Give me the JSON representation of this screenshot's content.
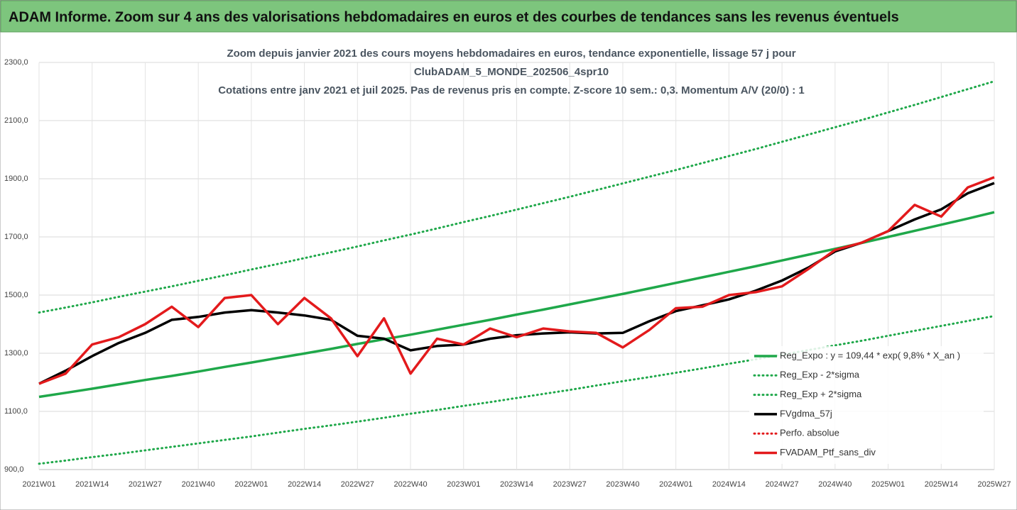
{
  "banner": "ADAM Informe. Zoom sur 4 ans des valorisations hebdomadaires en euros et des courbes de tendances sans les revenus éventuels",
  "chart_data": {
    "type": "line",
    "title": [
      "Zoom depuis janvier 2021 des cours moyens hebdomadaires  en euros, tendance exponentielle, lissage 57 j pour",
      "ClubADAM_5_MONDE_202506_4spr10",
      "Cotations entre janv 2021 et juil 2025. Pas de revenus pris en compte. Z-score 10 sem.: 0,3. Momentum A/V (20/0) : 1"
    ],
    "categories": [
      "2021W01",
      null,
      "2021W14",
      null,
      "2021W27",
      null,
      "2021W40",
      null,
      "2022W01",
      null,
      "2022W14",
      null,
      "2022W27",
      null,
      "2022W40",
      null,
      "2023W01",
      null,
      "2023W14",
      null,
      "2023W27",
      null,
      "2023W40",
      null,
      "2024W01",
      null,
      "2024W14",
      null,
      "2024W27",
      null,
      "2024W40",
      null,
      "2025W01",
      null,
      "2025W14",
      null,
      "2025W27"
    ],
    "ylim": [
      900,
      2300
    ],
    "yticks": [
      {
        "value": 900,
        "label": "900,0"
      },
      {
        "value": 1100,
        "label": "1100,0"
      },
      {
        "value": 1300,
        "label": "1300,0"
      },
      {
        "value": 1500,
        "label": "1500,0"
      },
      {
        "value": 1700,
        "label": "1700,0"
      },
      {
        "value": 1900,
        "label": "1900,0"
      },
      {
        "value": 2100,
        "label": "2100,0"
      },
      {
        "value": 2300,
        "label": "2300,0"
      }
    ],
    "grid": true,
    "series": [
      {
        "name": "Reg_Expo : y = 109,44 * exp( 9,8% *  X_an )",
        "color": "#1fa84a",
        "style": "solid",
        "values": [
          1150,
          1164,
          1178,
          1193,
          1208,
          1222,
          1237,
          1253,
          1268,
          1284,
          1299,
          1315,
          1332,
          1348,
          1364,
          1381,
          1398,
          1415,
          1433,
          1450,
          1468,
          1486,
          1504,
          1523,
          1542,
          1561,
          1580,
          1599,
          1619,
          1639,
          1659,
          1679,
          1700,
          1721,
          1742,
          1763,
          1785
        ]
      },
      {
        "name": "Reg_Exp - 2*sigma",
        "color": "#1fa84a",
        "style": "dotted",
        "values": [
          920,
          931,
          943,
          954,
          966,
          978,
          990,
          1002,
          1014,
          1027,
          1040,
          1052,
          1065,
          1078,
          1092,
          1105,
          1119,
          1132,
          1146,
          1160,
          1174,
          1189,
          1204,
          1218,
          1233,
          1248,
          1264,
          1279,
          1295,
          1311,
          1327,
          1343,
          1360,
          1377,
          1394,
          1411,
          1428
        ]
      },
      {
        "name": "Reg_Exp + 2*sigma",
        "color": "#1fa84a",
        "style": "dotted",
        "values": [
          1440,
          1457,
          1475,
          1494,
          1512,
          1530,
          1549,
          1568,
          1588,
          1607,
          1627,
          1647,
          1667,
          1688,
          1708,
          1729,
          1751,
          1772,
          1794,
          1816,
          1838,
          1861,
          1884,
          1907,
          1930,
          1954,
          1978,
          2002,
          2027,
          2052,
          2077,
          2102,
          2128,
          2154,
          2181,
          2208,
          2235
        ]
      },
      {
        "name": "FVgdma_57j",
        "color": "#000000",
        "style": "solid",
        "values": [
          1195,
          1240,
          1290,
          1335,
          1370,
          1415,
          1425,
          1440,
          1448,
          1440,
          1430,
          1415,
          1360,
          1350,
          1310,
          1325,
          1330,
          1350,
          1362,
          1368,
          1372,
          1368,
          1370,
          1410,
          1445,
          1465,
          1485,
          1515,
          1550,
          1595,
          1650,
          1680,
          1720,
          1760,
          1795,
          1850,
          1885
        ]
      },
      {
        "name": "Perfo. absolue",
        "color": "#e31a1c",
        "style": "dotted",
        "values": [
          null,
          null,
          null,
          null,
          null,
          null,
          null,
          null,
          null,
          null,
          null,
          null,
          null,
          null,
          null,
          null,
          null,
          null,
          null,
          null,
          null,
          null,
          null,
          null,
          null,
          null,
          null,
          null,
          null,
          null,
          null,
          null,
          null,
          null,
          null,
          null,
          null
        ]
      },
      {
        "name": "FVADAM_Ptf_sans_div",
        "color": "#e31a1c",
        "style": "solid",
        "values": [
          1195,
          1230,
          1330,
          1355,
          1400,
          1460,
          1390,
          1490,
          1500,
          1400,
          1490,
          1420,
          1290,
          1420,
          1230,
          1350,
          1330,
          1385,
          1355,
          1385,
          1375,
          1370,
          1320,
          1380,
          1455,
          1460,
          1500,
          1510,
          1530,
          1590,
          1655,
          1680,
          1720,
          1810,
          1770,
          1870,
          1905
        ]
      }
    ]
  }
}
